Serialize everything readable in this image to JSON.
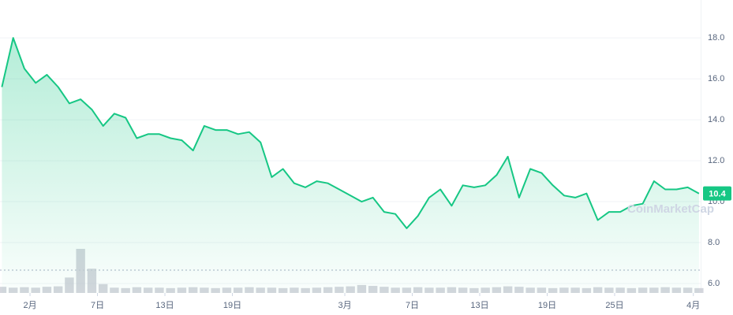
{
  "chart_data": {
    "type": "line",
    "x": [
      -2.5,
      -1.5,
      -0.5,
      0.5,
      1.5,
      2.5,
      3.5,
      4.5,
      5.5,
      6.5,
      7.5,
      8.5,
      9.5,
      10.5,
      11.5,
      12.5,
      13.5,
      14.5,
      15.5,
      16.5,
      17.5,
      18.5,
      19.5,
      20.5,
      21.5,
      22.5,
      23.5,
      24.5,
      25.5,
      26.5,
      27.5,
      28.5,
      29.5,
      30.5,
      31.5,
      32.5,
      33.5,
      34.5,
      35.5,
      36.5,
      37.5,
      38.5,
      39.5,
      40.5,
      41.5,
      42.5,
      43.5,
      44.5,
      45.5,
      46.5,
      47.5,
      48.5,
      49.5,
      50.5,
      51.5,
      52.5,
      53.5,
      54.5,
      55.5,
      56.5,
      57.5,
      58.5,
      59.5
    ],
    "series": [
      {
        "color": "#16c784",
        "values": [
          15.6,
          18.0,
          16.5,
          15.8,
          16.2,
          15.6,
          14.8,
          15.0,
          14.5,
          13.7,
          14.3,
          14.1,
          13.1,
          13.3,
          13.3,
          13.1,
          13.0,
          12.5,
          13.7,
          13.5,
          13.5,
          13.3,
          13.4,
          12.9,
          11.2,
          11.6,
          10.9,
          10.7,
          11.0,
          10.9,
          10.6,
          10.3,
          10.0,
          10.2,
          9.5,
          9.4,
          8.7,
          9.3,
          10.2,
          10.6,
          9.8,
          10.8,
          10.7,
          10.8,
          11.3,
          12.2,
          10.2,
          11.6,
          11.4,
          10.8,
          10.3,
          10.2,
          10.4,
          9.1,
          9.5,
          9.5,
          9.8,
          9.9,
          11.0,
          10.6,
          10.6,
          10.7,
          10.4
        ]
      }
    ],
    "volume": {
      "color": "#c9ccd4",
      "values": [
        14,
        12,
        13,
        12,
        14,
        15,
        35,
        100,
        55,
        20,
        12,
        11,
        13,
        12,
        12,
        11,
        12,
        13,
        12,
        11,
        12,
        12,
        13,
        12,
        12,
        11,
        12,
        11,
        12,
        13,
        14,
        15,
        18,
        16,
        14,
        12,
        12,
        13,
        12,
        12,
        13,
        12,
        11,
        12,
        13,
        15,
        14,
        12,
        12,
        11,
        12,
        12,
        11,
        13,
        12,
        12,
        11,
        12,
        12,
        13,
        12,
        12,
        11
      ]
    },
    "xlim": [
      -2.67,
      59.65
    ],
    "xticks": [
      {
        "value": 0,
        "label": "2月"
      },
      {
        "value": 6,
        "label": "7日"
      },
      {
        "value": 12,
        "label": "13日"
      },
      {
        "value": 18,
        "label": "19日"
      },
      {
        "value": 28,
        "label": "3月"
      },
      {
        "value": 34,
        "label": "7日"
      },
      {
        "value": 40,
        "label": "13日"
      },
      {
        "value": 46,
        "label": "19日"
      },
      {
        "value": 52,
        "label": "25日"
      },
      {
        "value": 59,
        "label": "4月"
      }
    ],
    "ylim": [
      5.54,
      19.85
    ],
    "yticks": [
      {
        "value": 6,
        "label": "6.0"
      },
      {
        "value": 8,
        "label": "8.0"
      },
      {
        "value": 10,
        "label": "10.0"
      },
      {
        "value": 12,
        "label": "12.0"
      },
      {
        "value": 14,
        "label": "14.0"
      },
      {
        "value": 16,
        "label": "16.0"
      },
      {
        "value": 18,
        "label": "18.0"
      }
    ],
    "last_price": 10.4,
    "watermark": "CoinMarketCap",
    "grid": true
  }
}
